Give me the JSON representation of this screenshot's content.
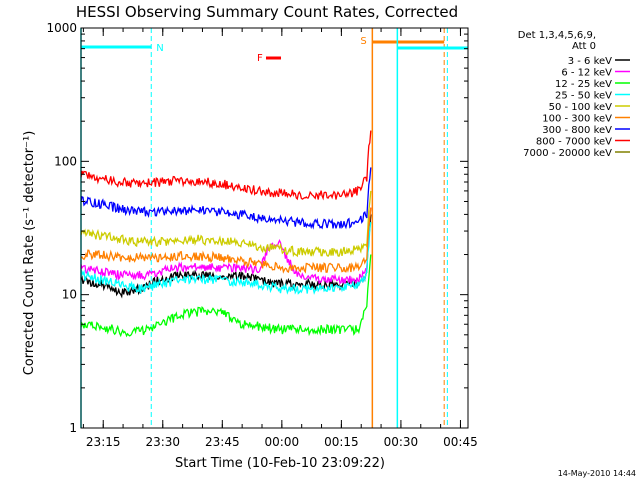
{
  "chart_data": {
    "type": "line",
    "title": "HESSI Observing Summary Count Rates, Corrected",
    "xlabel": "Start Time (10-Feb-10 23:09:22)",
    "ylabel": "Corrected Count Rate (s⁻¹ detector⁻¹)",
    "x_units": "minutes after 23:09:22",
    "xlim": [
      0,
      97.5
    ],
    "ylim": [
      1,
      1000
    ],
    "yscale": "log",
    "x_tick_labels": [
      {
        "label": "23:15",
        "x": 5.6
      },
      {
        "label": "23:30",
        "x": 20.6
      },
      {
        "label": "23:45",
        "x": 35.6
      },
      {
        "label": "00:00",
        "x": 50.6
      },
      {
        "label": "00:15",
        "x": 65.6
      },
      {
        "label": "00:30",
        "x": 80.6
      },
      {
        "label": "00:45",
        "x": 95.6
      }
    ],
    "y_tick_labels": [
      {
        "label": "1",
        "y": 1
      },
      {
        "label": "10",
        "y": 10
      },
      {
        "label": "100",
        "y": 100
      },
      {
        "label": "1000",
        "y": 1000
      }
    ],
    "legend": {
      "header": [
        "Det 1,3,4,5,6,9,",
        "Att 0"
      ],
      "placement": "right"
    },
    "series": [
      {
        "name": "3 - 6 keV",
        "color": "#000000",
        "points": [
          [
            0,
            13
          ],
          [
            5,
            12
          ],
          [
            10,
            10.5
          ],
          [
            15,
            11
          ],
          [
            20,
            13
          ],
          [
            25,
            14
          ],
          [
            30,
            14
          ],
          [
            35,
            14
          ],
          [
            40,
            14
          ],
          [
            45,
            13
          ],
          [
            50,
            12
          ],
          [
            55,
            12
          ],
          [
            60,
            12
          ],
          [
            65,
            12
          ],
          [
            70,
            12
          ],
          [
            72,
            14
          ],
          [
            73,
            40
          ]
        ]
      },
      {
        "name": "6 - 12 keV",
        "color": "#ff00ff",
        "points": [
          [
            0,
            16
          ],
          [
            5,
            15
          ],
          [
            10,
            14
          ],
          [
            15,
            14
          ],
          [
            20,
            15
          ],
          [
            25,
            16
          ],
          [
            30,
            16
          ],
          [
            35,
            16
          ],
          [
            40,
            16
          ],
          [
            45,
            15
          ],
          [
            47,
            22
          ],
          [
            50,
            25
          ],
          [
            52,
            18
          ],
          [
            55,
            14
          ],
          [
            60,
            13
          ],
          [
            65,
            13
          ],
          [
            70,
            13
          ],
          [
            72,
            15
          ],
          [
            73,
            45
          ]
        ]
      },
      {
        "name": "12 - 25 keV",
        "color": "#00ff00",
        "points": [
          [
            0,
            6
          ],
          [
            5,
            5.8
          ],
          [
            10,
            5.3
          ],
          [
            15,
            5.3
          ],
          [
            20,
            6
          ],
          [
            25,
            7
          ],
          [
            30,
            7.5
          ],
          [
            35,
            7.5
          ],
          [
            40,
            6
          ],
          [
            45,
            5.8
          ],
          [
            50,
            5.5
          ],
          [
            55,
            5.5
          ],
          [
            60,
            5.5
          ],
          [
            65,
            5.5
          ],
          [
            70,
            5.5
          ],
          [
            72,
            8
          ],
          [
            73,
            20
          ]
        ]
      },
      {
        "name": "25 - 50 keV",
        "color": "#00ffff",
        "points": [
          [
            0,
            14
          ],
          [
            5,
            13
          ],
          [
            10,
            12
          ],
          [
            15,
            11
          ],
          [
            20,
            12
          ],
          [
            25,
            13
          ],
          [
            30,
            13
          ],
          [
            35,
            13
          ],
          [
            40,
            12.5
          ],
          [
            45,
            12
          ],
          [
            50,
            11
          ],
          [
            55,
            11
          ],
          [
            60,
            11
          ],
          [
            65,
            11.5
          ],
          [
            70,
            12
          ],
          [
            72,
            14
          ],
          [
            73,
            35
          ]
        ]
      },
      {
        "name": "50 - 100 keV",
        "color": "#cccc00",
        "points": [
          [
            0,
            29
          ],
          [
            5,
            28
          ],
          [
            10,
            26
          ],
          [
            15,
            25
          ],
          [
            20,
            25
          ],
          [
            25,
            26
          ],
          [
            30,
            26
          ],
          [
            35,
            25
          ],
          [
            40,
            25
          ],
          [
            45,
            23
          ],
          [
            50,
            22
          ],
          [
            55,
            21
          ],
          [
            60,
            21
          ],
          [
            65,
            21
          ],
          [
            70,
            22
          ],
          [
            72,
            25
          ],
          [
            73,
            60
          ]
        ]
      },
      {
        "name": "100 - 300 keV",
        "color": "#ff8000",
        "points": [
          [
            0,
            20
          ],
          [
            5,
            20
          ],
          [
            10,
            19
          ],
          [
            15,
            19
          ],
          [
            20,
            19
          ],
          [
            25,
            19.5
          ],
          [
            30,
            19.5
          ],
          [
            35,
            19
          ],
          [
            40,
            18
          ],
          [
            45,
            17
          ],
          [
            50,
            16
          ],
          [
            55,
            16
          ],
          [
            60,
            16
          ],
          [
            65,
            16
          ],
          [
            70,
            16
          ],
          [
            72,
            18
          ],
          [
            73,
            45
          ]
        ]
      },
      {
        "name": "300 - 800 keV",
        "color": "#0000ff",
        "points": [
          [
            0,
            51
          ],
          [
            5,
            48
          ],
          [
            10,
            44
          ],
          [
            15,
            42
          ],
          [
            20,
            42
          ],
          [
            25,
            43
          ],
          [
            30,
            43
          ],
          [
            35,
            42
          ],
          [
            40,
            40
          ],
          [
            45,
            38
          ],
          [
            50,
            36
          ],
          [
            55,
            35
          ],
          [
            60,
            34
          ],
          [
            65,
            34
          ],
          [
            70,
            35
          ],
          [
            72,
            40
          ],
          [
            73,
            90
          ]
        ]
      },
      {
        "name": "800 - 7000 keV",
        "color": "#ff0000",
        "points": [
          [
            0,
            80
          ],
          [
            5,
            74
          ],
          [
            10,
            70
          ],
          [
            15,
            68
          ],
          [
            20,
            70
          ],
          [
            25,
            72
          ],
          [
            30,
            71
          ],
          [
            35,
            68
          ],
          [
            40,
            65
          ],
          [
            45,
            60
          ],
          [
            50,
            58
          ],
          [
            55,
            56
          ],
          [
            60,
            56
          ],
          [
            65,
            56
          ],
          [
            70,
            60
          ],
          [
            72,
            75
          ],
          [
            73,
            170
          ]
        ]
      },
      {
        "name": "7000 - 20000 keV",
        "color": "#808000",
        "points": []
      }
    ],
    "annotations": [
      {
        "label": "N",
        "color": "#00ffff",
        "x": 17.7
      },
      {
        "label": "F",
        "color": "#ff0000"
      },
      {
        "label": "S",
        "color": "#ff8000",
        "x": 73.4
      }
    ]
  },
  "footer": {
    "date": "14-May-2010 14:44"
  }
}
